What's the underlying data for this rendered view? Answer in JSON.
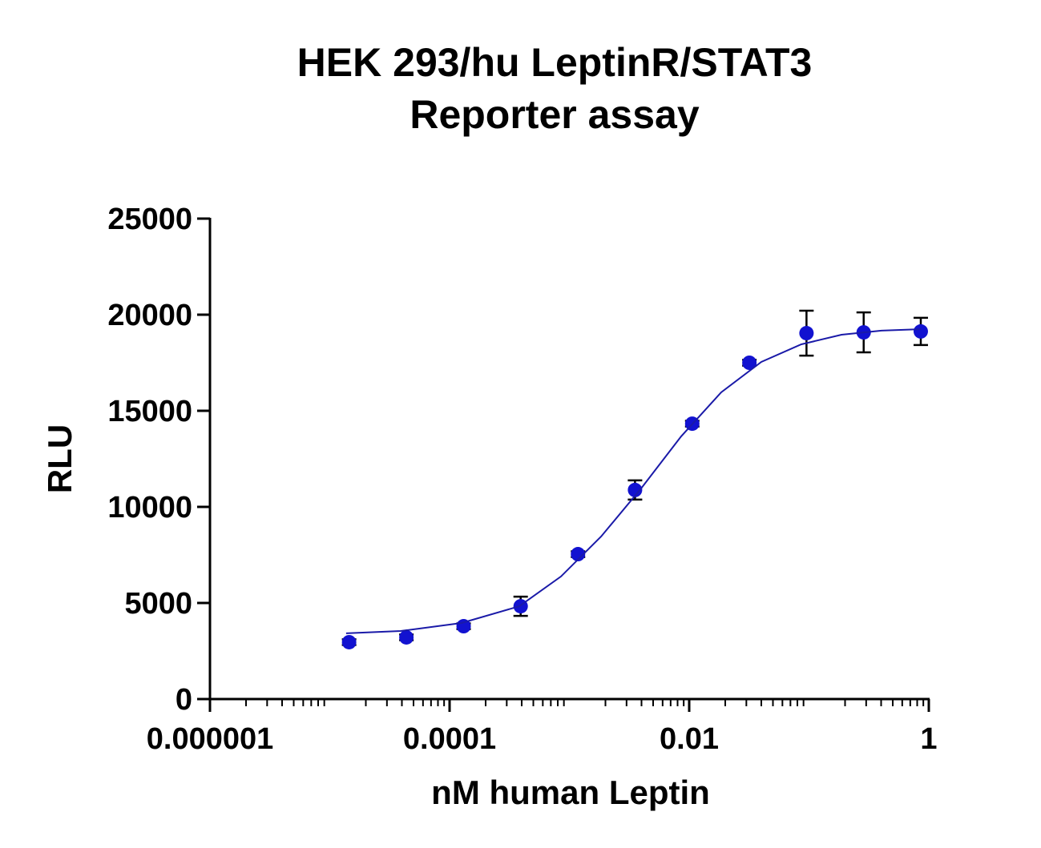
{
  "chart_data": {
    "type": "scatter",
    "title": [
      "HEK 293/hu LeptinR/STAT3",
      "Reporter assay"
    ],
    "x_label": "nM human Leptin",
    "y_label": "RLU",
    "x_scale": "log",
    "xlim": [
      1e-06,
      1
    ],
    "xticks": [
      1e-06,
      0.0001,
      0.01,
      1
    ],
    "ylim": [
      0,
      25000
    ],
    "yticks": [
      0,
      5000,
      10000,
      15000,
      20000,
      25000
    ],
    "series": [
      {
        "name": "data",
        "color": "#1212d0",
        "x": [
          1.45e-05,
          4.36e-05,
          0.000131,
          0.000392,
          0.00118,
          0.00353,
          0.0106,
          0.0318,
          0.0953,
          0.286,
          0.857
        ],
        "values": [
          2960,
          3210,
          3790,
          4830,
          7540,
          10880,
          14330,
          17500,
          19040,
          19080,
          19130
        ],
        "errors": [
          150,
          150,
          150,
          500,
          150,
          500,
          150,
          150,
          1170,
          1040,
          710
        ]
      },
      {
        "name": "fit",
        "color": "#1a1aa8",
        "x": [
          1.37e-05,
          3.91e-05,
          0.000126,
          0.000382,
          0.000851,
          0.00184,
          0.00397,
          0.00857,
          0.0185,
          0.04,
          0.0863,
          0.187,
          0.403,
          0.857
        ],
        "values": [
          3420,
          3540,
          3960,
          4830,
          6380,
          8460,
          10960,
          13670,
          15960,
          17540,
          18460,
          18960,
          19170,
          19250
        ]
      }
    ]
  }
}
